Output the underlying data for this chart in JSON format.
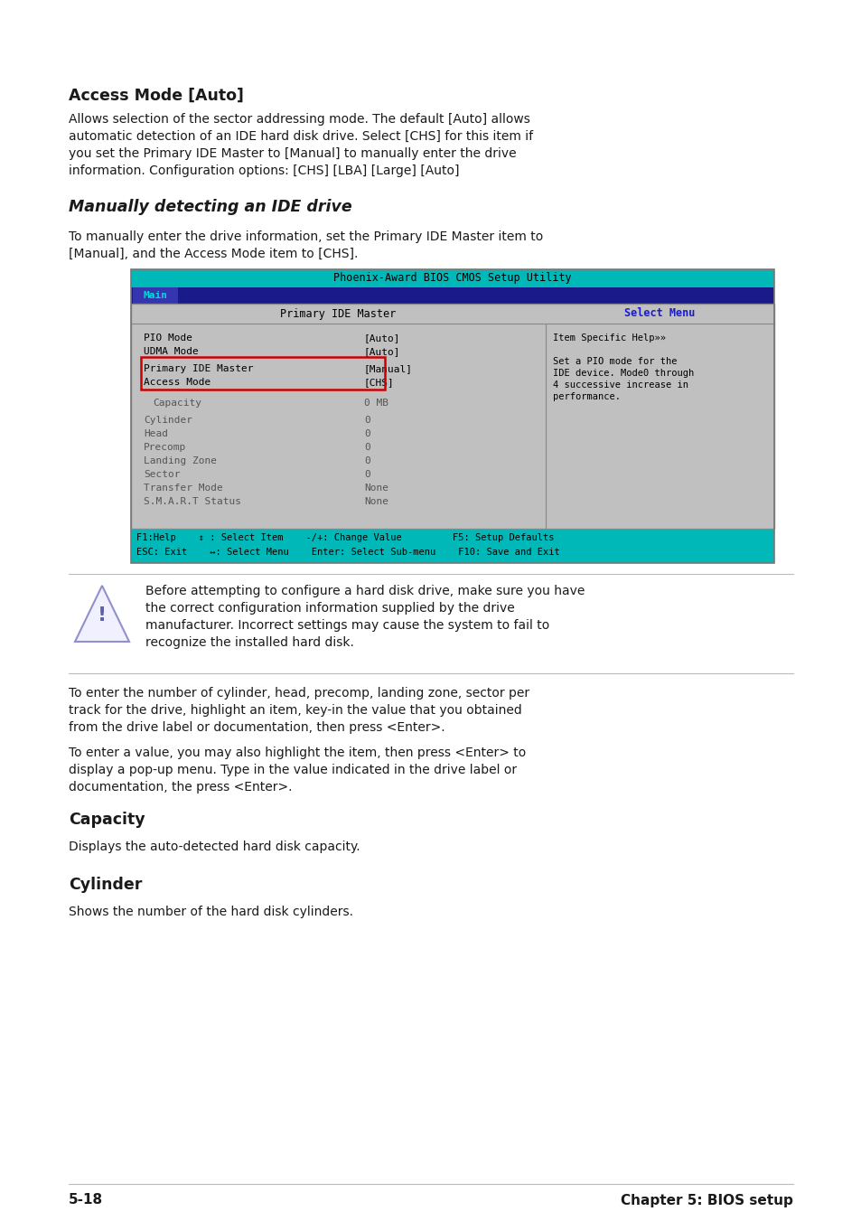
{
  "bg_color": "#ffffff",
  "text_color": "#1a1a1a",
  "heading1_access_mode": "Access Mode [Auto]",
  "para1_lines": [
    "Allows selection of the sector addressing mode. The default [Auto] allows",
    "automatic detection of an IDE hard disk drive. Select [CHS] for this item if",
    "you set the Primary IDE Master to [Manual] to manually enter the drive",
    "information. Configuration options: [CHS] [LBA] [Large] [Auto]"
  ],
  "heading2_italic": "Manually detecting an IDE drive",
  "para2_lines": [
    "To manually enter the drive information, set the Primary IDE Master item to",
    "[Manual], and the Access Mode item to [CHS]."
  ],
  "bios_title": "Phoenix-Award BIOS CMOS Setup Utility",
  "bios_tab": "Main",
  "bios_col1_header": "Primary IDE Master",
  "bios_col2_header": "Select Menu",
  "bios_row1": [
    "PIO Mode",
    "[Auto]"
  ],
  "bios_row2": [
    "UDMA Mode",
    "[Auto]"
  ],
  "bios_row3a": [
    "Primary IDE Master",
    "[Manual]"
  ],
  "bios_row3b": [
    "Access Mode",
    "[CHS]"
  ],
  "bios_right_text_lines": [
    "Item Specific Help»»",
    "",
    "Set a PIO mode for the",
    "IDE device. Mode0 through",
    "4 successive increase in",
    "performance."
  ],
  "bios_row4": [
    "Capacity",
    "0 MB"
  ],
  "bios_rows_data": [
    [
      "Cylinder",
      "0"
    ],
    [
      "Head",
      "0"
    ],
    [
      "Precomp",
      "0"
    ],
    [
      "Landing Zone",
      "0"
    ],
    [
      "Sector",
      "0"
    ],
    [
      "Transfer Mode",
      "None"
    ],
    [
      "S.M.A.R.T Status",
      "None"
    ]
  ],
  "bios_footer1": "F1:Help    ↕ : Select Item    -/+: Change Value         F5: Setup Defaults",
  "bios_footer2": "ESC: Exit    ↔: Select Menu    Enter: Select Sub-menu    F10: Save and Exit",
  "warning_text_lines": [
    "Before attempting to configure a hard disk drive, make sure you have",
    "the correct configuration information supplied by the drive",
    "manufacturer. Incorrect settings may cause the system to fail to",
    "recognize the installed hard disk."
  ],
  "para3_lines": [
    "To enter the number of cylinder, head, precomp, landing zone, sector per",
    "track for the drive, highlight an item, key-in the value that you obtained",
    "from the drive label or documentation, then press <Enter>."
  ],
  "para4_lines": [
    "To enter a value, you may also highlight the item, then press <Enter> to",
    "display a pop-up menu. Type in the value indicated in the drive label or",
    "documentation, the press <Enter>."
  ],
  "heading3_capacity": "Capacity",
  "para5": "Displays the auto-detected hard disk capacity.",
  "heading4_cylinder": "Cylinder",
  "para6": "Shows the number of the hard disk cylinders.",
  "footer_left": "5-18",
  "footer_right": "Chapter 5: BIOS setup",
  "cyan_color": "#00b8b8",
  "dark_navy": "#1a1a8a",
  "bios_bg": "#c0c0c0",
  "bios_title_bg": "#00b8b8",
  "bios_footer_bg": "#00b8b8",
  "red_box_color": "#cc0000",
  "bios_select_menu_color": "#1a1acc",
  "divider_color": "#888888",
  "separator_color": "#bbbbbb"
}
